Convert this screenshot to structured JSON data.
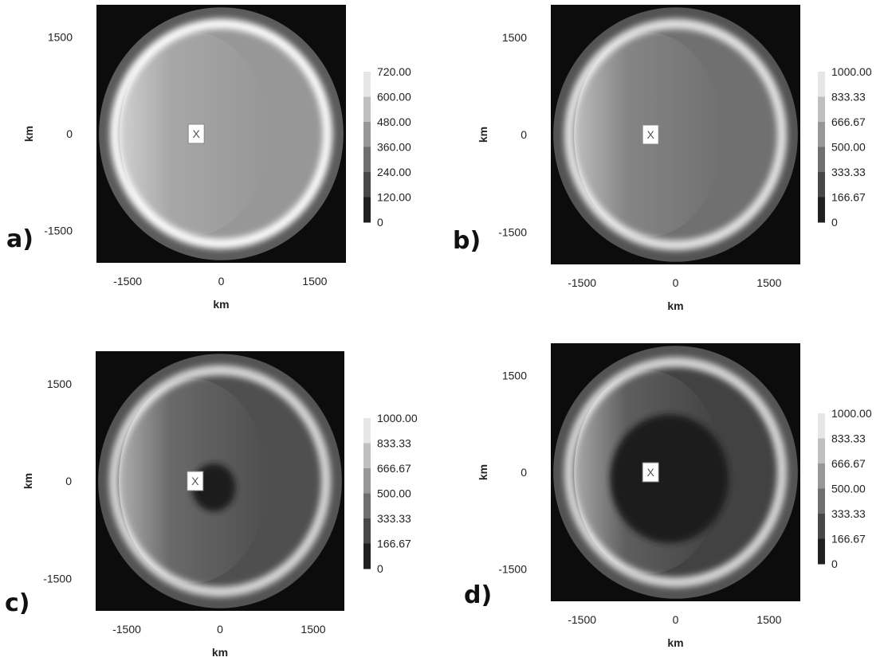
{
  "chart_data": [
    {
      "type": "heatmap",
      "panel_label": "a)",
      "xlabel": "km",
      "ylabel": "km",
      "xlim": [
        -2000,
        2000
      ],
      "ylim": [
        -2000,
        2000
      ],
      "x_ticks": [
        "-1500",
        "0",
        "1500"
      ],
      "y_ticks": [
        "1500",
        "0",
        "-1500"
      ],
      "colorbar": {
        "min": 0,
        "max": 720,
        "labels": [
          "720.00",
          "600.00",
          "480.00",
          "360.00",
          "240.00",
          "120.00",
          "0"
        ]
      },
      "marker": {
        "label": "X",
        "x": -400,
        "y": 0
      },
      "field": {
        "rim_radius_km": 1750,
        "rim_level": 720,
        "outer_level": 240,
        "interior_level": 420,
        "west_bright_level": 500,
        "core_radius_km": 0,
        "core_level": 420
      }
    },
    {
      "type": "heatmap",
      "panel_label": "b)",
      "xlabel": "km",
      "ylabel": "km",
      "xlim": [
        -2000,
        2000
      ],
      "ylim": [
        -2000,
        2000
      ],
      "x_ticks": [
        "-1500",
        "0",
        "1500"
      ],
      "y_ticks": [
        "1500",
        "0",
        "-1500"
      ],
      "colorbar": {
        "min": 0,
        "max": 1000,
        "labels": [
          "1000.00",
          "833.33",
          "666.67",
          "500.00",
          "333.33",
          "166.67",
          "0"
        ]
      },
      "marker": {
        "label": "X",
        "x": -400,
        "y": 0
      },
      "field": {
        "rim_radius_km": 1750,
        "rim_level": 900,
        "outer_level": 300,
        "interior_level": 420,
        "west_bright_level": 650,
        "core_radius_km": 0,
        "core_level": 420
      }
    },
    {
      "type": "heatmap",
      "panel_label": "c)",
      "xlabel": "km",
      "ylabel": "km",
      "xlim": [
        -2000,
        2000
      ],
      "ylim": [
        -2000,
        2000
      ],
      "x_ticks": [
        "-1500",
        "0",
        "1500"
      ],
      "y_ticks": [
        "1500",
        "0",
        "-1500"
      ],
      "colorbar": {
        "min": 0,
        "max": 1000,
        "labels": [
          "1000.00",
          "833.33",
          "666.67",
          "500.00",
          "333.33",
          "166.67",
          "0"
        ]
      },
      "marker": {
        "label": "X",
        "x": -400,
        "y": 0
      },
      "field": {
        "rim_radius_km": 1750,
        "rim_level": 850,
        "outer_level": 300,
        "interior_level": 280,
        "west_bright_level": 550,
        "core_radius_km": 350,
        "core_level": 60
      }
    },
    {
      "type": "heatmap",
      "panel_label": "d)",
      "xlabel": "km",
      "ylabel": "km",
      "xlim": [
        -2000,
        2000
      ],
      "ylim": [
        -2000,
        2000
      ],
      "x_ticks": [
        "-1500",
        "0",
        "1500"
      ],
      "y_ticks": [
        "1500",
        "0",
        "-1500"
      ],
      "colorbar": {
        "min": 0,
        "max": 1000,
        "labels": [
          "1000.00",
          "833.33",
          "666.67",
          "500.00",
          "333.33",
          "166.67",
          "0"
        ]
      },
      "marker": {
        "label": "X",
        "x": -400,
        "y": 0
      },
      "field": {
        "rim_radius_km": 1750,
        "rim_level": 850,
        "outer_level": 300,
        "interior_level": 230,
        "west_bright_level": 500,
        "core_radius_km": 950,
        "core_level": 60
      }
    }
  ]
}
